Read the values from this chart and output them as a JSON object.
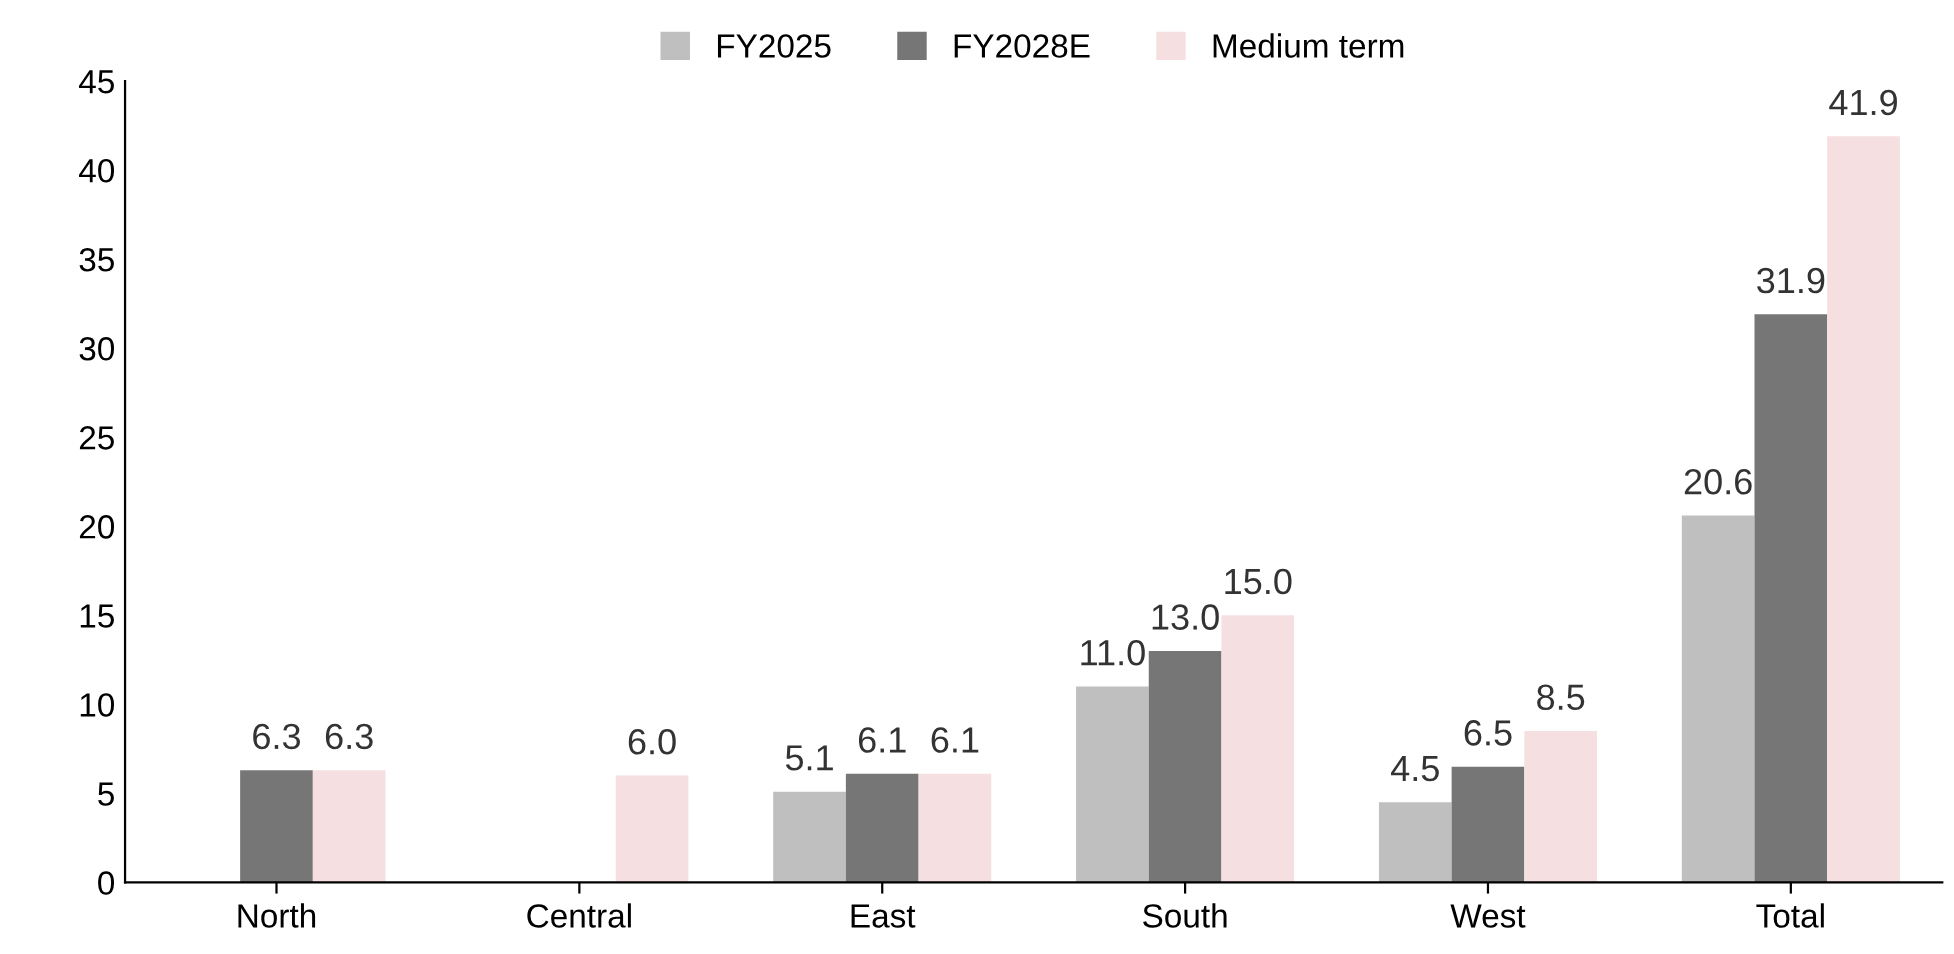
{
  "chart_data": {
    "type": "bar",
    "categories": [
      "North",
      "Central",
      "East",
      "South",
      "West",
      "Total"
    ],
    "series": [
      {
        "name": "FY2025",
        "color": "#bfbfbf",
        "values": [
          null,
          null,
          5.1,
          11.0,
          4.5,
          20.6
        ],
        "value_labels": [
          null,
          null,
          "5.1",
          "11.0",
          "4.5",
          "20.6"
        ]
      },
      {
        "name": "FY2028E",
        "color": "#767676",
        "values": [
          6.3,
          null,
          6.1,
          13.0,
          6.5,
          31.9
        ],
        "value_labels": [
          "6.3",
          null,
          "6.1",
          "13.0",
          "6.5",
          "31.9"
        ]
      },
      {
        "name": "Medium term",
        "color": "#f5dfe0",
        "values": [
          6.3,
          6.0,
          6.1,
          15.0,
          8.5,
          41.9
        ],
        "value_labels": [
          "6.3",
          "6.0",
          "6.1",
          "15.0",
          "8.5",
          "41.9"
        ]
      }
    ],
    "ylim": [
      0,
      45
    ],
    "yticks": [
      0,
      5,
      10,
      15,
      20,
      25,
      30,
      35,
      40,
      45
    ],
    "grid": false,
    "legend": "top"
  }
}
